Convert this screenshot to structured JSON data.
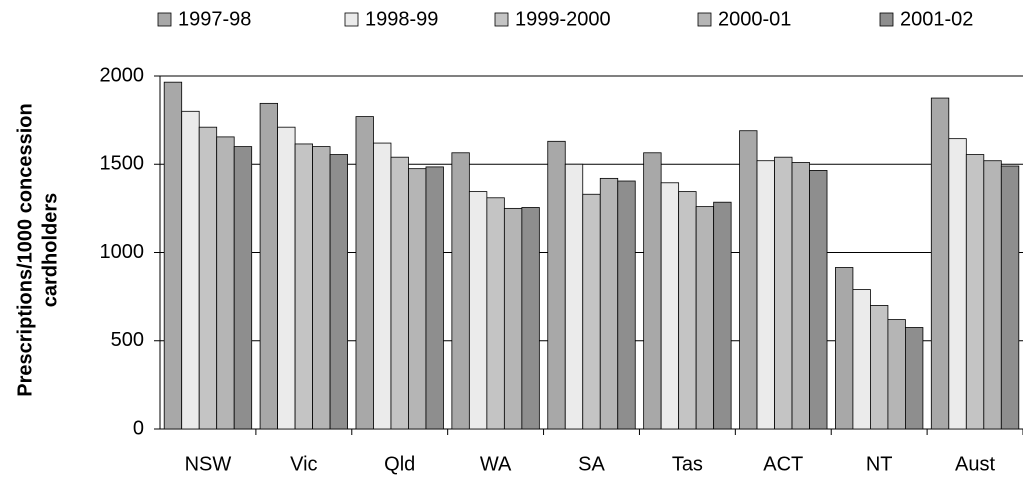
{
  "chart_data": {
    "type": "bar",
    "y_label_lines": [
      "Prescriptions/1000 concession",
      "cardholders"
    ],
    "categories": [
      "NSW",
      "Vic",
      "Qld",
      "WA",
      "SA",
      "Tas",
      "ACT",
      "NT",
      "Aust"
    ],
    "series": [
      {
        "name": "1997-98",
        "color": "#a8a8a8",
        "values": [
          1965,
          1845,
          1770,
          1565,
          1630,
          1565,
          1690,
          915,
          1875
        ]
      },
      {
        "name": "1998-99",
        "color": "#ebebeb",
        "values": [
          1800,
          1710,
          1620,
          1345,
          1500,
          1395,
          1520,
          790,
          1645
        ]
      },
      {
        "name": "1999-2000",
        "color": "#c4c4c4",
        "values": [
          1710,
          1615,
          1540,
          1310,
          1330,
          1345,
          1540,
          700,
          1555
        ]
      },
      {
        "name": "2000-01",
        "color": "#b5b5b5",
        "values": [
          1655,
          1600,
          1475,
          1250,
          1420,
          1260,
          1510,
          620,
          1520
        ]
      },
      {
        "name": "2001-02",
        "color": "#8e8e8e",
        "values": [
          1600,
          1555,
          1485,
          1255,
          1405,
          1285,
          1465,
          575,
          1490
        ]
      }
    ],
    "ylim": [
      0,
      2000
    ],
    "yticks": [
      0,
      500,
      1000,
      1500,
      2000
    ],
    "grid": true
  }
}
